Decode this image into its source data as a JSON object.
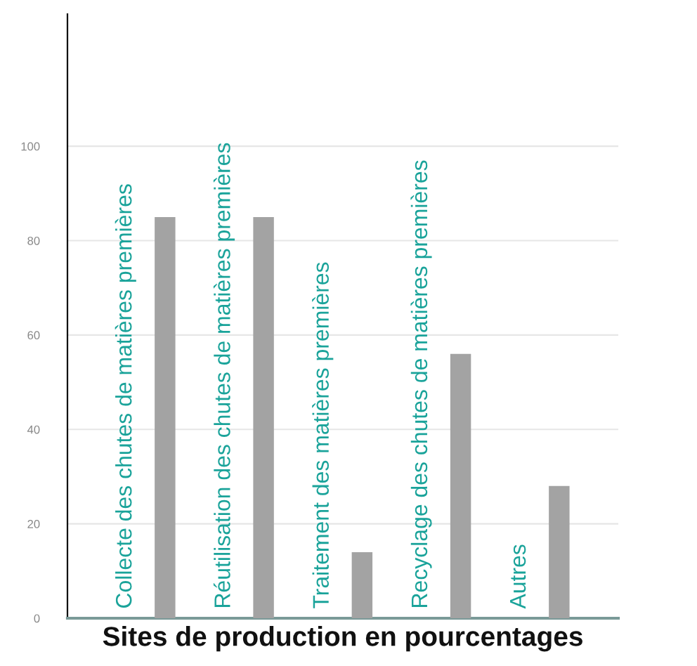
{
  "chart_data": {
    "type": "bar",
    "xlabel": "Sites de production en pourcentages",
    "categories": [
      "Collecte des chutes de matières premières",
      "Réutilisation des chutes de matières premières",
      "Traitement des matières premières",
      "Recyclage des chutes de matières premières",
      "Autres"
    ],
    "values": [
      85,
      85,
      14,
      56,
      28
    ],
    "color": "#a3a3a3",
    "ylim": [
      0,
      128
    ],
    "yticks": [
      0,
      20,
      40,
      60,
      80,
      100
    ],
    "grid": "y"
  }
}
